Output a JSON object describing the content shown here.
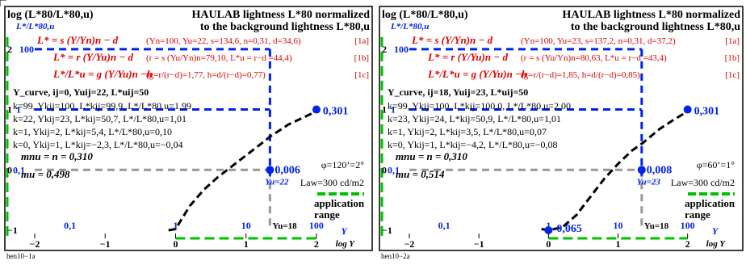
{
  "chart_data": [
    {
      "type": "line",
      "footer_id": "hen10−1a",
      "title_left": "log (L*80/L*80,u)",
      "title_right_1": "HAULAB lightness L*80 normalized",
      "title_right_2": "to the background lightness L*80,u",
      "ylabel": "L*/L*80,u",
      "xlabel": "log Y",
      "formula_a": "L* = s (Y/Yn)n − d",
      "params_a": "(Yn=100, Yu=22, s=134,6, n=0,31, d=34,6)",
      "tag_a": "[1a]",
      "formula_b": "L* = r (Y/Yu)n − d",
      "params_b": "(r = s (Yu/Yn)n=79,10, L*u = r−d =44,4)",
      "tag_b": "[1b]",
      "formula_c": "L*/L*u = g (Y/Yu)n −h",
      "params_c": "(g=r/(r−d)=1,77, h=d/(r−d)=0,77)",
      "tag_c": "[1c]",
      "curve_info": "Y_curve, ij=0, Yuij=22, L*uij=50",
      "rows": [
        "k=99, Ykij=100, L*kij=99,9, L*/L*80,u=1,99",
        "k=22, Ykij=23, L*kij=50,7, L*/L*80,u=1,01",
        "k=1, Ykij=2, L*kij=5,4, L*/L*80,u=0,10",
        "k=0, Ykij=1, L*kij=−2,3, L*/L*80,u=−0,04"
      ],
      "mnu": "mnu = n = 0,310",
      "mu": "mu = 0,498",
      "val_top": "0,301",
      "val_mid": "0,006",
      "yu_label": "Yu=22",
      "y_bottom_label": "Yu=18",
      "phi": "φ=120’=2°",
      "law": "Law=300 cd/m2",
      "app_1": "application",
      "app_2": "range",
      "x_ticks": [
        "−2",
        "−1",
        "0",
        "1",
        "2"
      ],
      "y_ticks": [
        "−1",
        "0",
        "1",
        "2"
      ],
      "y_vals": [
        "0,1",
        "1",
        "10",
        "100"
      ],
      "y_letter": "Y",
      "y_left_labels": [
        "0,1",
        "1",
        "100"
      ],
      "xlim": [
        -2,
        2.7
      ],
      "ylim": [
        -1,
        2.6
      ],
      "curve": {
        "x": [
          -0.1,
          0,
          0.2,
          0.4,
          0.6,
          0.8,
          1,
          1.2,
          1.34,
          1.6,
          1.8,
          2
        ],
        "y": [
          -1,
          -0.98,
          -0.6,
          -0.33,
          -0.12,
          0.06,
          0.24,
          0.42,
          0.55,
          0.75,
          0.86,
          0.97
        ]
      }
    },
    {
      "type": "line",
      "footer_id": "hen10−2a",
      "title_left": "log (L*80/L*80,u)",
      "title_right_1": "HAULAB lightness L*80 normalized",
      "title_right_2": "to the background lightness L*80,u",
      "ylabel": "L*/L*80,u",
      "xlabel": "log Y",
      "formula_a": "L* = s (Y/Yn)n − d",
      "params_a": "(Yn=100, Yu=23, s=137,2, n=0,31, d=37,2)",
      "tag_a": "[1a]",
      "formula_b": "L* = r (Y/Yu)n − d",
      "params_b": "(r = s (Yu/Yn)n=80,63, L*u = r−d =43,4)",
      "tag_b": "[1b]",
      "formula_c": "L*/L*u = g (Y/Yu)n −h",
      "params_c": "(g=r/(r−d)=1,85, h=d/(r−d)=0,85)",
      "tag_c": "[1c]",
      "curve_info": "Y_curve, ij=18, Yuij=23, L*uij=50",
      "rows": [
        "k=99, Ykij=100, L*kij=100,0, L*/L*80,u=2,00",
        "k=23, Ykij=24, L*kij=50,9, L*/L*80,u=1,01",
        "k=1, Ykij=2, L*kij=3,5, L*/L*80,u=0,07",
        "k=0, Ykij=1, L*kij=−4,2, L*/L*80,u=−0,08"
      ],
      "mnu": "mnu = n = 0,310",
      "mu": "mu = 0,514",
      "val_top": "0,301",
      "val_mid": "0,008",
      "val_bottom": "0,065",
      "yu_label": "Yu=23",
      "y_bottom_label": "Yu=18",
      "phi": "φ=60’=1°",
      "law": "Law=300 cd/m2",
      "app_1": "application",
      "app_2": "range",
      "x_ticks": [
        "−2",
        "−1",
        "0",
        "1",
        "2"
      ],
      "y_ticks": [
        "−1",
        "0",
        "1",
        "2"
      ],
      "y_vals": [
        "0,1",
        "1",
        "10",
        "100"
      ],
      "y_letter": "Y",
      "y_left_labels": [
        "0,1",
        "1",
        "100"
      ],
      "xlim": [
        -2,
        2.7
      ],
      "ylim": [
        -1,
        2.6
      ],
      "curve": {
        "x": [
          -0.1,
          0,
          0.2,
          0.4,
          0.6,
          0.8,
          1,
          1.2,
          1.36,
          1.6,
          1.8,
          2
        ],
        "y": [
          -0.98,
          -1.0,
          -0.95,
          -0.75,
          -0.45,
          -0.15,
          0.1,
          0.32,
          0.45,
          0.68,
          0.83,
          0.97
        ]
      }
    }
  ]
}
